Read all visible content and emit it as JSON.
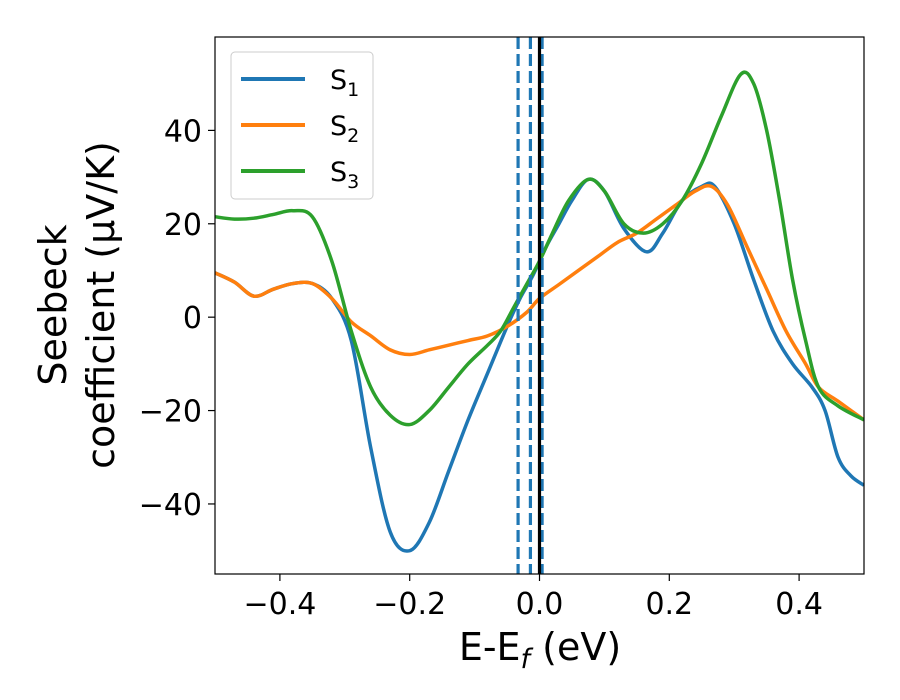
{
  "chart_data": {
    "type": "line",
    "title": "",
    "xlabel": "E-E",
    "xlabel_sub": "f",
    "xlabel_unit": " (eV)",
    "ylabel_line1": "Seebeck",
    "ylabel_line2": "coefficient  (μV/K)",
    "xlim": [
      -0.5,
      0.5
    ],
    "ylim": [
      -55,
      60
    ],
    "xticks": [
      -0.4,
      -0.2,
      0.0,
      0.2,
      0.4
    ],
    "xtick_labels": [
      "−0.4",
      "−0.2",
      "0.0",
      "0.2",
      "0.4"
    ],
    "yticks": [
      -40,
      -20,
      0,
      20,
      40
    ],
    "ytick_labels": [
      "−40",
      "−20",
      "0",
      "20",
      "40"
    ],
    "grid": false,
    "legend_position": "top-left",
    "vertical_lines": [
      {
        "x": -0.033,
        "style": "dashed",
        "color": "#1f77b4"
      },
      {
        "x": -0.014,
        "style": "dashed",
        "color": "#1f77b4"
      },
      {
        "x": 0.004,
        "style": "dashed",
        "color": "#1f77b4"
      },
      {
        "x": 0.0,
        "style": "solid",
        "color": "#000000"
      }
    ],
    "series": [
      {
        "name": "S",
        "sub": "1",
        "color": "#1f77b4",
        "points": [
          [
            -0.5,
            9.5
          ],
          [
            -0.47,
            7.5
          ],
          [
            -0.44,
            4.5
          ],
          [
            -0.41,
            6
          ],
          [
            -0.38,
            7.2
          ],
          [
            -0.35,
            7.2
          ],
          [
            -0.32,
            4
          ],
          [
            -0.29,
            -5
          ],
          [
            -0.26,
            -28
          ],
          [
            -0.23,
            -46
          ],
          [
            -0.2,
            -50
          ],
          [
            -0.17,
            -44
          ],
          [
            -0.14,
            -33
          ],
          [
            -0.11,
            -22
          ],
          [
            -0.08,
            -12
          ],
          [
            -0.05,
            -2
          ],
          [
            -0.03,
            4
          ],
          [
            -0.01,
            9
          ],
          [
            0.01,
            15
          ],
          [
            0.03,
            20
          ],
          [
            0.05,
            25
          ],
          [
            0.075,
            29.5
          ],
          [
            0.1,
            27
          ],
          [
            0.13,
            19
          ],
          [
            0.165,
            14
          ],
          [
            0.19,
            18
          ],
          [
            0.22,
            25
          ],
          [
            0.25,
            28
          ],
          [
            0.27,
            28
          ],
          [
            0.3,
            20
          ],
          [
            0.33,
            8
          ],
          [
            0.36,
            -3
          ],
          [
            0.39,
            -10
          ],
          [
            0.42,
            -15
          ],
          [
            0.44,
            -20
          ],
          [
            0.46,
            -30
          ],
          [
            0.48,
            -34
          ],
          [
            0.5,
            -36
          ]
        ]
      },
      {
        "name": "S",
        "sub": "2",
        "color": "#ff7f0e",
        "points": [
          [
            -0.5,
            9.5
          ],
          [
            -0.47,
            7.5
          ],
          [
            -0.44,
            4.5
          ],
          [
            -0.41,
            6
          ],
          [
            -0.38,
            7.2
          ],
          [
            -0.35,
            7.2
          ],
          [
            -0.32,
            4
          ],
          [
            -0.29,
            -1
          ],
          [
            -0.26,
            -4
          ],
          [
            -0.23,
            -7
          ],
          [
            -0.2,
            -8
          ],
          [
            -0.17,
            -7
          ],
          [
            -0.14,
            -6
          ],
          [
            -0.11,
            -5
          ],
          [
            -0.08,
            -4
          ],
          [
            -0.05,
            -2
          ],
          [
            -0.02,
            1
          ],
          [
            0.0,
            4
          ],
          [
            0.03,
            7
          ],
          [
            0.06,
            10
          ],
          [
            0.09,
            13
          ],
          [
            0.12,
            16
          ],
          [
            0.15,
            18
          ],
          [
            0.18,
            21
          ],
          [
            0.21,
            24
          ],
          [
            0.24,
            27
          ],
          [
            0.265,
            28
          ],
          [
            0.29,
            24
          ],
          [
            0.32,
            15
          ],
          [
            0.35,
            6
          ],
          [
            0.38,
            -3
          ],
          [
            0.41,
            -10
          ],
          [
            0.43,
            -15
          ],
          [
            0.46,
            -18
          ],
          [
            0.5,
            -22
          ]
        ]
      },
      {
        "name": "S",
        "sub": "3",
        "color": "#2ca02c",
        "points": [
          [
            -0.5,
            21.5
          ],
          [
            -0.47,
            21
          ],
          [
            -0.44,
            21.2
          ],
          [
            -0.41,
            22
          ],
          [
            -0.38,
            22.8
          ],
          [
            -0.35,
            21.5
          ],
          [
            -0.32,
            12
          ],
          [
            -0.29,
            -3
          ],
          [
            -0.26,
            -15
          ],
          [
            -0.23,
            -21
          ],
          [
            -0.2,
            -23
          ],
          [
            -0.17,
            -20
          ],
          [
            -0.14,
            -15
          ],
          [
            -0.11,
            -10
          ],
          [
            -0.08,
            -6
          ],
          [
            -0.06,
            -3
          ],
          [
            -0.04,
            2
          ],
          [
            -0.02,
            7
          ],
          [
            0.0,
            12
          ],
          [
            0.02,
            18
          ],
          [
            0.045,
            25
          ],
          [
            0.075,
            29.5
          ],
          [
            0.1,
            27
          ],
          [
            0.13,
            20
          ],
          [
            0.16,
            18
          ],
          [
            0.19,
            20
          ],
          [
            0.22,
            25
          ],
          [
            0.25,
            33
          ],
          [
            0.28,
            43
          ],
          [
            0.31,
            52
          ],
          [
            0.33,
            50
          ],
          [
            0.35,
            40
          ],
          [
            0.37,
            25
          ],
          [
            0.39,
            8
          ],
          [
            0.41,
            -5
          ],
          [
            0.43,
            -15
          ],
          [
            0.46,
            -19
          ],
          [
            0.5,
            -22
          ]
        ]
      }
    ]
  }
}
